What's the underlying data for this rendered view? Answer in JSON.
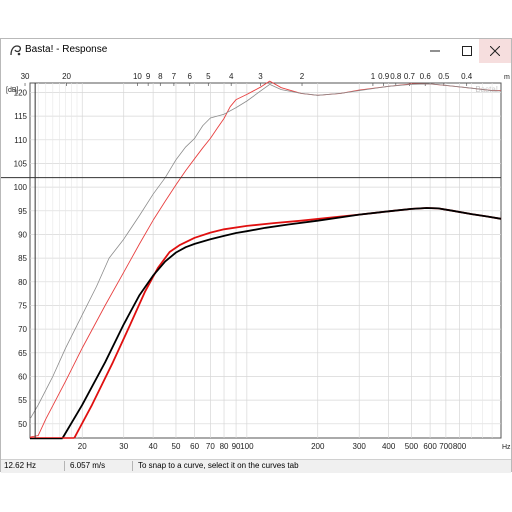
{
  "window": {
    "title": "Basta! - Response",
    "app_icon": "basta-app-icon",
    "controls": [
      "minimize-icon",
      "maximize-icon",
      "close-icon"
    ]
  },
  "chart_data": {
    "type": "line",
    "x_scale": "log",
    "xlim": [
      12,
      1200
    ],
    "ylim": [
      47,
      122
    ],
    "y_unit_label": "[dB]",
    "x_unit_label": "Hz",
    "top_unit_label": "m",
    "watermark": "Basta!",
    "y_ticks": [
      50,
      55,
      60,
      65,
      70,
      75,
      80,
      85,
      90,
      95,
      100,
      105,
      110,
      115,
      120
    ],
    "x_ticks": [
      {
        "value": 20,
        "label": "20"
      },
      {
        "value": 30,
        "label": "30"
      },
      {
        "value": 40,
        "label": "40"
      },
      {
        "value": 50,
        "label": "50"
      },
      {
        "value": 60,
        "label": "60"
      },
      {
        "value": 70,
        "label": "70"
      },
      {
        "value": 80,
        "label": "80"
      },
      {
        "value": 90,
        "label": "90"
      },
      {
        "value": 100,
        "label": "100"
      },
      {
        "value": 200,
        "label": "200"
      },
      {
        "value": 300,
        "label": "300"
      },
      {
        "value": 400,
        "label": "400"
      },
      {
        "value": 500,
        "label": "500"
      },
      {
        "value": 600,
        "label": "600"
      },
      {
        "value": 700,
        "label": "700"
      },
      {
        "value": 800,
        "label": "800"
      }
    ],
    "x_minor_ticks": [
      13,
      14,
      15,
      16,
      17,
      18,
      19,
      900,
      1000,
      1100
    ],
    "top_ticks": [
      {
        "value": 11.43,
        "label": "30"
      },
      {
        "value": 17.15,
        "label": "20"
      },
      {
        "value": 34.3,
        "label": "10"
      },
      {
        "value": 38.1,
        "label": "9"
      },
      {
        "value": 42.9,
        "label": "8"
      },
      {
        "value": 49.0,
        "label": "7"
      },
      {
        "value": 57.2,
        "label": "6"
      },
      {
        "value": 68.6,
        "label": "5"
      },
      {
        "value": 85.8,
        "label": "4"
      },
      {
        "value": 114.3,
        "label": "3"
      },
      {
        "value": 171.5,
        "label": "2"
      },
      {
        "value": 343,
        "label": "1"
      },
      {
        "value": 381,
        "label": "0.9"
      },
      {
        "value": 429,
        "label": "0.8"
      },
      {
        "value": 490,
        "label": "0.7"
      },
      {
        "value": 572,
        "label": "0.6"
      },
      {
        "value": 686,
        "label": "0.5"
      },
      {
        "value": 858,
        "label": "0.4"
      }
    ],
    "cursor": {
      "x": 12.62,
      "y": 102
    },
    "series": [
      {
        "color": "#e01010",
        "width": 1.8,
        "points": [
          [
            18.5,
            47
          ],
          [
            22,
            54
          ],
          [
            27,
            63
          ],
          [
            32,
            71
          ],
          [
            37,
            78
          ],
          [
            42,
            83
          ],
          [
            47,
            86.3
          ],
          [
            52,
            87.8
          ],
          [
            60,
            89.3
          ],
          [
            70,
            90.4
          ],
          [
            80,
            91.1
          ],
          [
            100,
            91.8
          ],
          [
            130,
            92.4
          ],
          [
            170,
            92.9
          ],
          [
            220,
            93.5
          ],
          [
            300,
            94.2
          ],
          [
            400,
            94.9
          ],
          [
            500,
            95.4
          ],
          [
            580,
            95.6
          ],
          [
            650,
            95.5
          ],
          [
            750,
            95.0
          ],
          [
            900,
            94.3
          ],
          [
            1050,
            93.8
          ],
          [
            1200,
            93.3
          ]
        ]
      },
      {
        "color": "#000000",
        "width": 1.8,
        "points": [
          [
            16.5,
            47
          ],
          [
            20,
            54
          ],
          [
            25,
            63
          ],
          [
            30,
            71
          ],
          [
            35,
            77.2
          ],
          [
            40,
            81.3
          ],
          [
            45,
            84.3
          ],
          [
            50,
            86.2
          ],
          [
            55,
            87.3
          ],
          [
            60,
            88
          ],
          [
            70,
            89
          ],
          [
            80,
            89.7
          ],
          [
            90,
            90.3
          ],
          [
            100,
            90.7
          ],
          [
            120,
            91.4
          ],
          [
            150,
            92.1
          ],
          [
            200,
            92.9
          ],
          [
            250,
            93.6
          ],
          [
            300,
            94.2
          ],
          [
            400,
            94.9
          ],
          [
            500,
            95.4
          ],
          [
            580,
            95.6
          ],
          [
            650,
            95.5
          ],
          [
            750,
            95.0
          ],
          [
            900,
            94.3
          ],
          [
            1050,
            93.8
          ],
          [
            1200,
            93.3
          ]
        ]
      },
      {
        "color": "#e84040",
        "width": 0.9,
        "points": [
          [
            12,
            47.2
          ],
          [
            13,
            47.5
          ],
          [
            14,
            51
          ],
          [
            17,
            59
          ],
          [
            20,
            66
          ],
          [
            25,
            75
          ],
          [
            30,
            82
          ],
          [
            35,
            88
          ],
          [
            40,
            93
          ],
          [
            45,
            97
          ],
          [
            50,
            100.5
          ],
          [
            55,
            103.5
          ],
          [
            60,
            106
          ],
          [
            65,
            108.3
          ],
          [
            70,
            110.3
          ],
          [
            75,
            112.5
          ],
          [
            80,
            114.5
          ],
          [
            85,
            117
          ],
          [
            90,
            118.5
          ],
          [
            100,
            119.6
          ],
          [
            115,
            121.2
          ],
          [
            125,
            122.4
          ],
          [
            140,
            121
          ],
          [
            170,
            119.8
          ],
          [
            200,
            119.4
          ],
          [
            250,
            119.8
          ],
          [
            300,
            120.5
          ],
          [
            400,
            121.3
          ],
          [
            500,
            121.8
          ],
          [
            600,
            121.8
          ],
          [
            700,
            121.5
          ],
          [
            900,
            120.9
          ],
          [
            1100,
            120.4
          ],
          [
            1200,
            120.4
          ]
        ]
      },
      {
        "color": "#8c8c8c",
        "width": 0.8,
        "points": [
          [
            12,
            51
          ],
          [
            13,
            54
          ],
          [
            15,
            60
          ],
          [
            17,
            66
          ],
          [
            20,
            73
          ],
          [
            23,
            79
          ],
          [
            26,
            85
          ],
          [
            30,
            89
          ],
          [
            35,
            94
          ],
          [
            40,
            98.5
          ],
          [
            45,
            102
          ],
          [
            50,
            105.8
          ],
          [
            55,
            108.5
          ],
          [
            60,
            110.3
          ],
          [
            65,
            113
          ],
          [
            70,
            114.6
          ],
          [
            80,
            115.4
          ],
          [
            90,
            116.8
          ],
          [
            100,
            118.2
          ],
          [
            115,
            120.4
          ],
          [
            125,
            121.7
          ],
          [
            140,
            120.6
          ],
          [
            170,
            119.8
          ],
          [
            200,
            119.4
          ],
          [
            250,
            119.8
          ],
          [
            300,
            120.4
          ],
          [
            400,
            121.3
          ],
          [
            500,
            121.7
          ],
          [
            600,
            121.8
          ],
          [
            700,
            121.5
          ],
          [
            900,
            120.9
          ],
          [
            1100,
            120.4
          ],
          [
            1200,
            120.3
          ]
        ]
      }
    ]
  },
  "status": {
    "frequency": "12.62 Hz",
    "velocity": "6.057 m/s",
    "hint": "To snap to a curve, select it on the curves tab"
  }
}
